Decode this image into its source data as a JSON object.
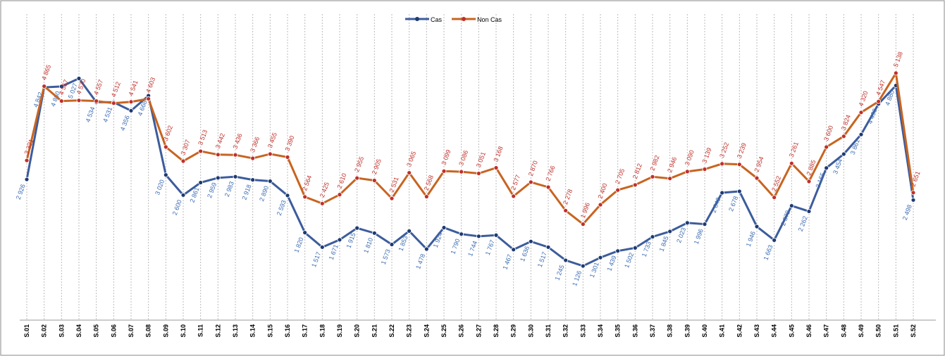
{
  "chart_data": {
    "type": "line",
    "categories": [
      "S.01",
      "S.02",
      "S.03",
      "S.04",
      "S.05",
      "S.06",
      "S.07",
      "S.08",
      "S.09",
      "S.10",
      "S.11",
      "S.12",
      "S.13",
      "S.14",
      "S.15",
      "S.16",
      "S.17",
      "S.18",
      "S.19",
      "S.20",
      "S.21",
      "S.22",
      "S.23",
      "S.24",
      "S.25",
      "S.26",
      "S.27",
      "S.28",
      "S.29",
      "S.30",
      "S.31",
      "S.32",
      "S.33",
      "S.34",
      "S.35",
      "S.36",
      "S.37",
      "S.38",
      "S.39",
      "S.40",
      "S.41",
      "S.42",
      "S.43",
      "S.44",
      "S.45",
      "S.46",
      "S.47",
      "S.48",
      "S.49",
      "S.50",
      "S.51",
      "S.52"
    ],
    "series": [
      {
        "name": "Cas",
        "color": "#3c5c9c",
        "values": [
          2926,
          4842,
          4860,
          5027,
          4534,
          4531,
          4356,
          4668,
          3020,
          2600,
          2861,
          2959,
          2983,
          2918,
          2890,
          2593,
          1820,
          1517,
          1671,
          1915,
          1810,
          1573,
          1853,
          1478,
          1924,
          1790,
          1744,
          1767,
          1467,
          1636,
          1517,
          1245,
          1126,
          1301,
          1439,
          1502,
          1733,
          1845,
          2023,
          1996,
          2649,
          2678,
          1946,
          1663,
          2379,
          2262,
          3165,
          3454,
          3861,
          4498,
          4880,
          2498
        ],
        "value_labels": [
          "2 926",
          "4 842",
          "4 860",
          "5 027",
          "4 534",
          "4 531",
          "4 356",
          "4 668",
          "3 020",
          "2 600",
          "2 861",
          "2 959",
          "2 983",
          "2 918",
          "2 890",
          "2 593",
          "1 820",
          "1 517",
          "1 671",
          "1 915",
          "1 810",
          "1 573",
          "1 853",
          "1 478",
          "1 924",
          "1 790",
          "1 744",
          "1 767",
          "1 467",
          "1 636",
          "1 517",
          "1 245",
          "1 126",
          "1 301",
          "1 439",
          "1 502",
          "1 733",
          "1 845",
          "2 023",
          "1 996",
          "2 649",
          "2 678",
          "1 946",
          "1 663",
          "2 379",
          "2 262",
          "3 165",
          "3 454",
          "3 861",
          "4 498",
          "4 880",
          "2 498"
        ]
      },
      {
        "name": "Non Cas",
        "color": "#c86420",
        "values": [
          3321,
          4865,
          4557,
          4570,
          4557,
          4512,
          4541,
          4603,
          3602,
          3307,
          3513,
          3442,
          3436,
          3366,
          3455,
          3390,
          2564,
          2425,
          2610,
          2955,
          2905,
          2531,
          3065,
          2568,
          3099,
          3086,
          3051,
          3168,
          2577,
          2870,
          2766,
          2278,
          1996,
          2400,
          2705,
          2812,
          2982,
          2946,
          3090,
          3139,
          3252,
          3239,
          2954,
          2552,
          3261,
          2885,
          3600,
          3824,
          4320,
          4547,
          5138,
          2651
        ],
        "value_labels": [
          "3 321",
          "4 865",
          "4 557",
          "4 570",
          "4 557",
          "4 512",
          "4 541",
          "4 603",
          "3 602",
          "3 307",
          "3 513",
          "3 442",
          "3 436",
          "3 366",
          "3 455",
          "3 390",
          "2 564",
          "2 425",
          "2 610",
          "2 955",
          "2 905",
          "2 531",
          "3 065",
          "2 568",
          "3 099",
          "3 086",
          "3 051",
          "3 168",
          "2 577",
          "2 870",
          "2 766",
          "2 278",
          "1 996",
          "2 400",
          "2 705",
          "2 812",
          "2 982",
          "2 946",
          "3 090",
          "3 139",
          "3 252",
          "3 239",
          "2 954",
          "2 552",
          "3 261",
          "2 885",
          "3 600",
          "3 824",
          "4 320",
          "4 547",
          "5 138",
          "2 651"
        ]
      }
    ],
    "ylim": [
      0,
      6000
    ],
    "grid": true
  }
}
